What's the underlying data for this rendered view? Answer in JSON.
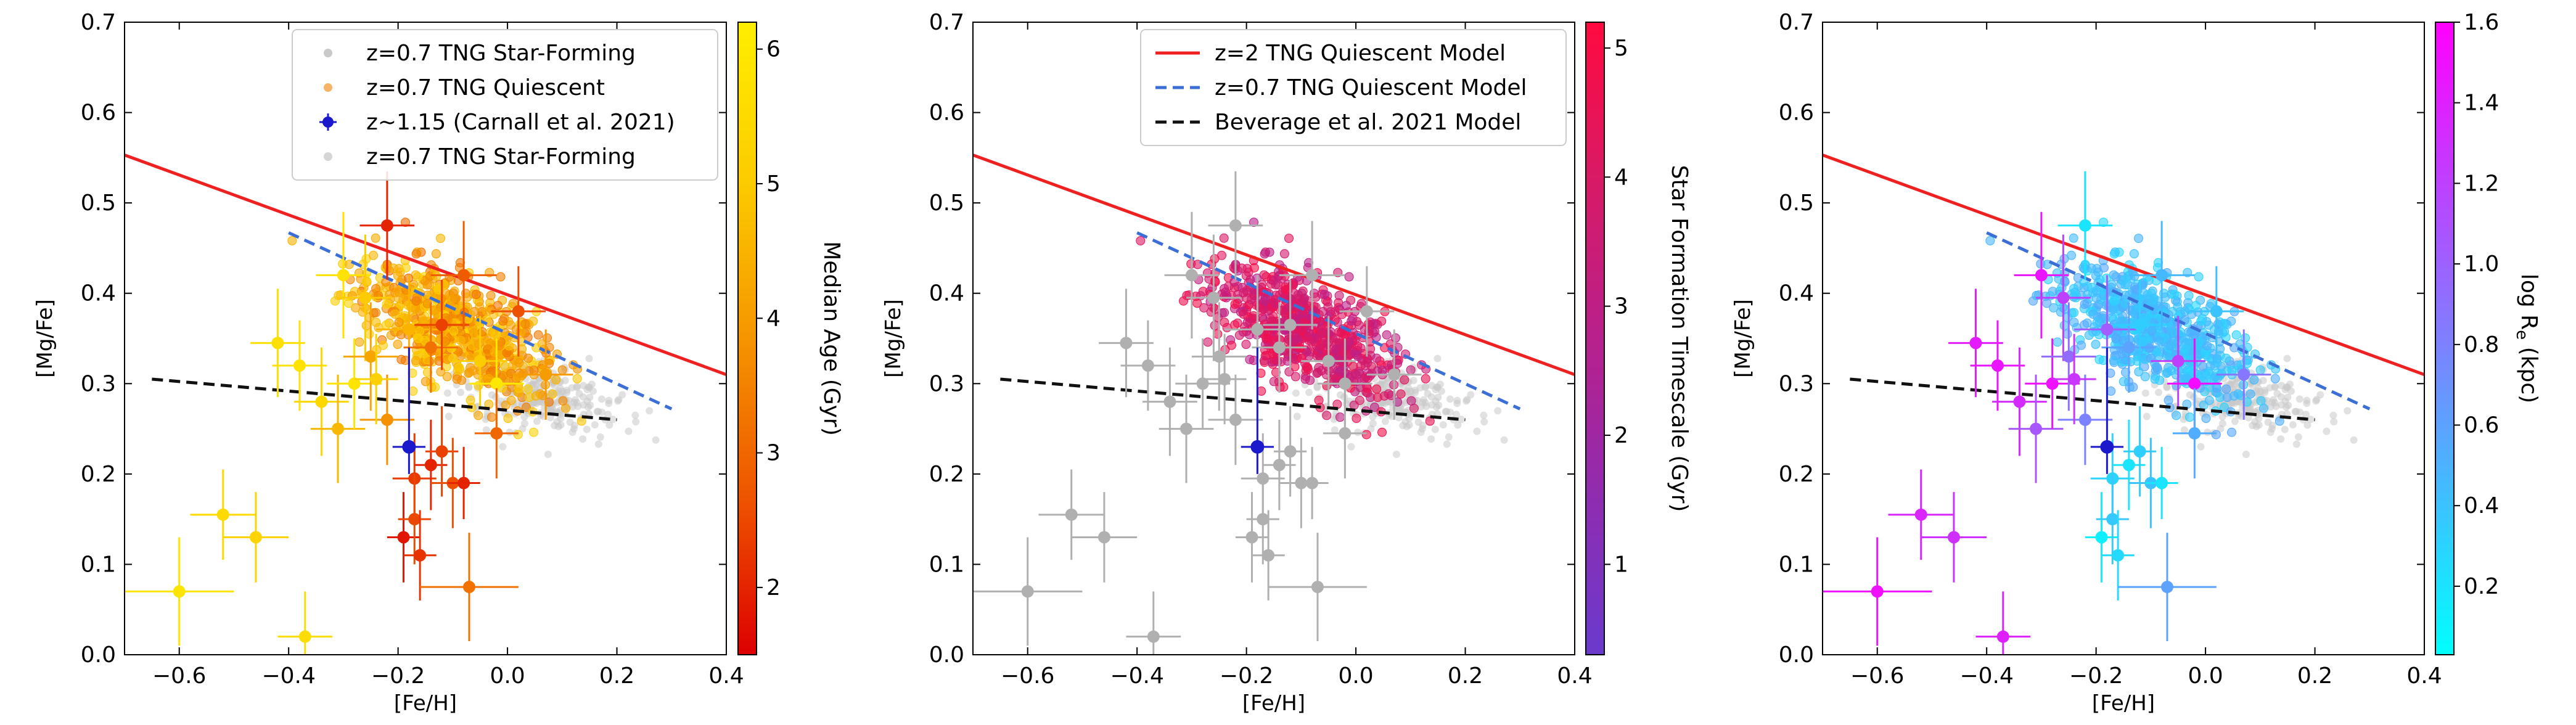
{
  "chart_data": [
    {
      "type": "scatter",
      "title": "",
      "xlabel": "[Fe/H]",
      "ylabel": "[Mg/Fe]",
      "xlim": [
        -0.7,
        0.4
      ],
      "ylim": [
        0.0,
        0.7
      ],
      "xticks": [
        "-0.6",
        "-0.4",
        "-0.2",
        "0.0",
        "0.2",
        "0.4"
      ],
      "yticks": [
        "0.0",
        "0.1",
        "0.2",
        "0.3",
        "0.4",
        "0.5",
        "0.6",
        "0.7"
      ],
      "colorbar": {
        "label": "Median Age (Gyr)",
        "range": [
          1.5,
          6.2
        ],
        "ticks": [
          "2",
          "3",
          "4",
          "5",
          "6"
        ],
        "colors": [
          "#dd0000",
          "#ee5500",
          "#f59500",
          "#fccc00",
          "#ffee00"
        ]
      },
      "legend": {
        "position": "top-right",
        "entries": [
          {
            "label": "z=0.7 TNG Star-Forming",
            "marker": "dot",
            "color": "#bbbbbb"
          },
          {
            "label": "z=0.7 TNG Quiescent",
            "marker": "dot",
            "color": "#f5a040"
          },
          {
            "label": "z~1.15 (Carnall et al. 2021)",
            "marker": "errorbar",
            "color": "#1a1acc"
          },
          {
            "label": "z=0.7 TNG Star-Forming",
            "marker": "dot",
            "color": "#cccccc"
          }
        ]
      },
      "lines": [
        {
          "name": "z=2 TNG Quiescent Model",
          "style": "solid",
          "color": "#ee2020",
          "x": [
            -0.7,
            0.4
          ],
          "y": [
            0.553,
            0.31
          ]
        },
        {
          "name": "z=0.7 TNG Quiescent Model",
          "style": "dashed",
          "color": "#3b6fd6",
          "x": [
            -0.4,
            0.3
          ],
          "y": [
            0.467,
            0.272
          ]
        },
        {
          "name": "Beverage et al. 2021 Model",
          "style": "dashed",
          "color": "#111111",
          "x": [
            -0.65,
            0.2
          ],
          "y": [
            0.305,
            0.26
          ]
        }
      ],
      "carnall_point": {
        "x": -0.18,
        "y": 0.23,
        "xerr": 0.03,
        "yerr": 0.11,
        "color": "#1a1acc"
      },
      "observed_points": [
        {
          "x": -0.6,
          "y": 0.07,
          "xerr": 0.1,
          "yerr": 0.06,
          "c": 5.9
        },
        {
          "x": -0.52,
          "y": 0.155,
          "xerr": 0.06,
          "yerr": 0.05,
          "c": 5.5
        },
        {
          "x": -0.46,
          "y": 0.13,
          "xerr": 0.06,
          "yerr": 0.05,
          "c": 5.3
        },
        {
          "x": -0.37,
          "y": 0.02,
          "xerr": 0.05,
          "yerr": 0.05,
          "c": 5.6
        },
        {
          "x": -0.3,
          "y": 0.42,
          "xerr": 0.05,
          "yerr": 0.07,
          "c": 5.8
        },
        {
          "x": -0.26,
          "y": 0.395,
          "xerr": 0.05,
          "yerr": 0.07,
          "c": 5.0
        },
        {
          "x": -0.22,
          "y": 0.475,
          "xerr": 0.05,
          "yerr": 0.06,
          "c": 2.0
        },
        {
          "x": -0.18,
          "y": 0.36,
          "xerr": 0.06,
          "yerr": 0.06,
          "c": 4.5
        },
        {
          "x": -0.14,
          "y": 0.34,
          "xerr": 0.05,
          "yerr": 0.05,
          "c": 3.2
        },
        {
          "x": -0.12,
          "y": 0.365,
          "xerr": 0.05,
          "yerr": 0.05,
          "c": 2.4
        },
        {
          "x": -0.08,
          "y": 0.42,
          "xerr": 0.06,
          "yerr": 0.06,
          "c": 2.8
        },
        {
          "x": -0.05,
          "y": 0.325,
          "xerr": 0.05,
          "yerr": 0.05,
          "c": 5.0
        },
        {
          "x": -0.02,
          "y": 0.3,
          "xerr": 0.05,
          "yerr": 0.05,
          "c": 6.0
        },
        {
          "x": 0.02,
          "y": 0.38,
          "xerr": 0.05,
          "yerr": 0.05,
          "c": 2.6
        },
        {
          "x": 0.07,
          "y": 0.31,
          "xerr": 0.05,
          "yerr": 0.05,
          "c": 4.0
        },
        {
          "x": -0.42,
          "y": 0.345,
          "xerr": 0.05,
          "yerr": 0.06,
          "c": 5.7
        },
        {
          "x": -0.38,
          "y": 0.32,
          "xerr": 0.05,
          "yerr": 0.05,
          "c": 5.8
        },
        {
          "x": -0.34,
          "y": 0.28,
          "xerr": 0.05,
          "yerr": 0.06,
          "c": 5.4
        },
        {
          "x": -0.31,
          "y": 0.25,
          "xerr": 0.05,
          "yerr": 0.06,
          "c": 4.6
        },
        {
          "x": -0.28,
          "y": 0.3,
          "xerr": 0.05,
          "yerr": 0.05,
          "c": 5.9
        },
        {
          "x": -0.25,
          "y": 0.33,
          "xerr": 0.05,
          "yerr": 0.06,
          "c": 4.2
        },
        {
          "x": -0.22,
          "y": 0.26,
          "xerr": 0.05,
          "yerr": 0.05,
          "c": 3.8
        },
        {
          "x": -0.17,
          "y": 0.195,
          "xerr": 0.04,
          "yerr": 0.05,
          "c": 2.3
        },
        {
          "x": -0.19,
          "y": 0.13,
          "xerr": 0.03,
          "yerr": 0.05,
          "c": 1.8
        },
        {
          "x": -0.17,
          "y": 0.15,
          "xerr": 0.03,
          "yerr": 0.05,
          "c": 2.5
        },
        {
          "x": -0.16,
          "y": 0.11,
          "xerr": 0.03,
          "yerr": 0.05,
          "c": 2.2
        },
        {
          "x": -0.14,
          "y": 0.21,
          "xerr": 0.03,
          "yerr": 0.05,
          "c": 2.0
        },
        {
          "x": -0.12,
          "y": 0.225,
          "xerr": 0.03,
          "yerr": 0.05,
          "c": 2.4
        },
        {
          "x": -0.1,
          "y": 0.19,
          "xerr": 0.04,
          "yerr": 0.05,
          "c": 2.6
        },
        {
          "x": -0.08,
          "y": 0.19,
          "xerr": 0.03,
          "yerr": 0.04,
          "c": 2.0
        },
        {
          "x": -0.07,
          "y": 0.075,
          "xerr": 0.09,
          "yerr": 0.06,
          "c": 3.2
        },
        {
          "x": -0.02,
          "y": 0.245,
          "xerr": 0.04,
          "yerr": 0.05,
          "c": 3.0
        },
        {
          "x": -0.24,
          "y": 0.305,
          "xerr": 0.04,
          "yerr": 0.05,
          "c": 5.2
        }
      ]
    },
    {
      "type": "scatter",
      "title": "",
      "xlabel": "[Fe/H]",
      "ylabel": "[Mg/Fe]",
      "xlim": [
        -0.7,
        0.4
      ],
      "ylim": [
        0.0,
        0.7
      ],
      "xticks": [
        "-0.6",
        "-0.4",
        "-0.2",
        "0.0",
        "0.2",
        "0.4"
      ],
      "yticks": [
        "0.0",
        "0.1",
        "0.2",
        "0.3",
        "0.4",
        "0.5",
        "0.6",
        "0.7"
      ],
      "colorbar": {
        "label": "Star Formation Timescale (Gyr)",
        "range": [
          0.3,
          5.2
        ],
        "ticks": [
          "1",
          "2",
          "3",
          "4",
          "5"
        ],
        "colors": [
          "#6a3acc",
          "#8f2cb0",
          "#b8208c",
          "#d81a66",
          "#ff0a40"
        ]
      },
      "legend": {
        "position": "top-right",
        "entries": [
          {
            "label": "z=2 TNG Quiescent Model",
            "marker": "solid",
            "color": "#ee2020"
          },
          {
            "label": "z=0.7 TNG Quiescent Model",
            "marker": "dashed",
            "color": "#3b6fd6"
          },
          {
            "label": "Beverage et al. 2021 Model",
            "marker": "dashed",
            "color": "#111111"
          }
        ]
      }
    },
    {
      "type": "scatter",
      "title": "",
      "xlabel": "[Fe/H]",
      "ylabel": "[Mg/Fe]",
      "xlim": [
        -0.7,
        0.4
      ],
      "ylim": [
        0.0,
        0.7
      ],
      "xticks": [
        "-0.6",
        "-0.4",
        "-0.2",
        "0.0",
        "0.2",
        "0.4"
      ],
      "yticks": [
        "0.0",
        "0.1",
        "0.2",
        "0.3",
        "0.4",
        "0.5",
        "0.6",
        "0.7"
      ],
      "colorbar": {
        "label": "log R",
        "label_sub": "e",
        "label_unit": "(kpc)",
        "range": [
          0.03,
          1.6
        ],
        "ticks": [
          "0.2",
          "0.4",
          "0.6",
          "0.8",
          "1.0",
          "1.2",
          "1.4",
          "1.6"
        ],
        "colors": [
          "#00ffff",
          "#3fbfff",
          "#7f7fff",
          "#bf3fff",
          "#ff00ff"
        ]
      }
    }
  ]
}
